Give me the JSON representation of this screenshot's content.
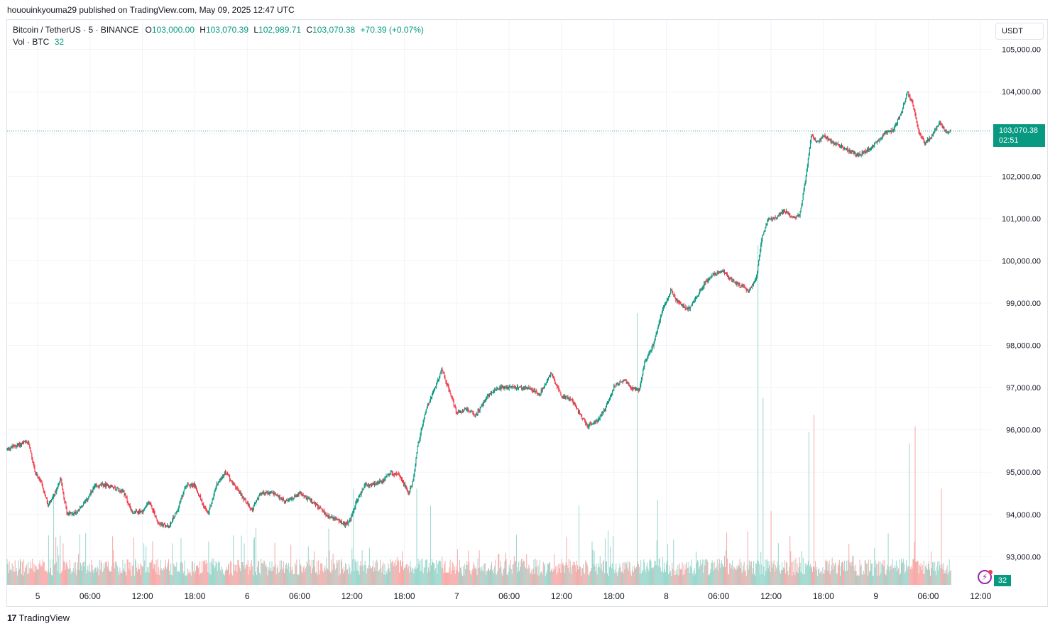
{
  "header": {
    "published": "hououinkyouma29 published on TradingView.com, May 09, 2025 12:47 UTC"
  },
  "legend": {
    "symbol": "Bitcoin / TetherUS · 5 · BINANCE",
    "o_label": "O",
    "o_value": "103,000.00",
    "h_label": "H",
    "h_value": "103,070.39",
    "l_label": "L",
    "l_value": "102,989.71",
    "c_label": "C",
    "c_value": "103,070.38",
    "change": "+70.39 (+0.07%)",
    "vol_label": "Vol · BTC",
    "vol_value": "32"
  },
  "price_scale": {
    "unit": "USDT"
  },
  "last_price": {
    "value": "103,070.38",
    "countdown": "02:51"
  },
  "volume_tag": "32",
  "footer": {
    "brand": "TradingView"
  },
  "colors": {
    "up": "#089981",
    "down": "#f23645",
    "vol_up": "#9ad6cc",
    "vol_down": "#f7a9a7",
    "grid": "#f0f3fa"
  },
  "chart_data": {
    "type": "candlestick",
    "symbol": "Bitcoin / TetherUS",
    "interval": "5",
    "exchange": "BINANCE",
    "y_axis": {
      "unit": "USDT",
      "ticks": [
        93000,
        94000,
        95000,
        96000,
        97000,
        98000,
        99000,
        100000,
        101000,
        102000,
        103000,
        104000,
        105000
      ],
      "tick_labels": [
        "93,000.00",
        "94,000.00",
        "95,000.00",
        "96,000.00",
        "97,000.00",
        "98,000.00",
        "99,000.00",
        "100,000.00",
        "101,000.00",
        "102,000.00",
        "103,000.00",
        "104,000.00",
        "105,000.00"
      ],
      "range": [
        92300,
        105700
      ]
    },
    "x_axis": {
      "range_hours": [
        -3.5,
        109.2
      ],
      "tick_labels": [
        "5",
        "06:00",
        "12:00",
        "18:00",
        "6",
        "06:00",
        "12:00",
        "18:00",
        "7",
        "06:00",
        "12:00",
        "18:00",
        "8",
        "06:00",
        "12:00",
        "18:00",
        "9",
        "06:00",
        "12:00"
      ],
      "tick_hours": [
        0,
        6,
        12,
        18,
        24,
        30,
        36,
        42,
        48,
        54,
        60,
        66,
        72,
        78,
        84,
        90,
        96,
        102,
        108
      ]
    },
    "price_anchors": [
      {
        "h": -3.5,
        "p": 95550
      },
      {
        "h": -1.5,
        "p": 95700
      },
      {
        "h": -1.0,
        "p": 95680
      },
      {
        "h": -0.3,
        "p": 95000
      },
      {
        "h": 0.5,
        "p": 94700
      },
      {
        "h": 1.2,
        "p": 94200
      },
      {
        "h": 1.9,
        "p": 94450
      },
      {
        "h": 2.6,
        "p": 94850
      },
      {
        "h": 3.4,
        "p": 94000
      },
      {
        "h": 4.4,
        "p": 94050
      },
      {
        "h": 5.5,
        "p": 94300
      },
      {
        "h": 6.5,
        "p": 94650
      },
      {
        "h": 7.5,
        "p": 94700
      },
      {
        "h": 8.5,
        "p": 94650
      },
      {
        "h": 9.8,
        "p": 94550
      },
      {
        "h": 10.8,
        "p": 94050
      },
      {
        "h": 12.0,
        "p": 94050
      },
      {
        "h": 12.8,
        "p": 94300
      },
      {
        "h": 13.8,
        "p": 93800
      },
      {
        "h": 15.0,
        "p": 93700
      },
      {
        "h": 16.0,
        "p": 94100
      },
      {
        "h": 17.0,
        "p": 94700
      },
      {
        "h": 18.0,
        "p": 94700
      },
      {
        "h": 18.8,
        "p": 94300
      },
      {
        "h": 19.5,
        "p": 94000
      },
      {
        "h": 20.5,
        "p": 94700
      },
      {
        "h": 21.5,
        "p": 95000
      },
      {
        "h": 22.5,
        "p": 94700
      },
      {
        "h": 23.5,
        "p": 94400
      },
      {
        "h": 24.5,
        "p": 94100
      },
      {
        "h": 25.5,
        "p": 94500
      },
      {
        "h": 27.0,
        "p": 94500
      },
      {
        "h": 28.5,
        "p": 94300
      },
      {
        "h": 30.0,
        "p": 94500
      },
      {
        "h": 31.5,
        "p": 94300
      },
      {
        "h": 33.0,
        "p": 94000
      },
      {
        "h": 34.5,
        "p": 93850
      },
      {
        "h": 35.2,
        "p": 93750
      },
      {
        "h": 35.8,
        "p": 93850
      },
      {
        "h": 36.5,
        "p": 94300
      },
      {
        "h": 37.5,
        "p": 94700
      },
      {
        "h": 38.5,
        "p": 94700
      },
      {
        "h": 39.5,
        "p": 94800
      },
      {
        "h": 40.5,
        "p": 95000
      },
      {
        "h": 41.5,
        "p": 94900
      },
      {
        "h": 42.5,
        "p": 94500
      },
      {
        "h": 43.0,
        "p": 94800
      },
      {
        "h": 43.5,
        "p": 95600
      },
      {
        "h": 44.5,
        "p": 96500
      },
      {
        "h": 45.5,
        "p": 97000
      },
      {
        "h": 46.3,
        "p": 97450
      },
      {
        "h": 47.0,
        "p": 97000
      },
      {
        "h": 48.0,
        "p": 96400
      },
      {
        "h": 49.0,
        "p": 96500
      },
      {
        "h": 50.2,
        "p": 96350
      },
      {
        "h": 51.5,
        "p": 96800
      },
      {
        "h": 53.0,
        "p": 97000
      },
      {
        "h": 54.5,
        "p": 97000
      },
      {
        "h": 56.0,
        "p": 97000
      },
      {
        "h": 57.5,
        "p": 96850
      },
      {
        "h": 58.8,
        "p": 97350
      },
      {
        "h": 60.0,
        "p": 96800
      },
      {
        "h": 61.2,
        "p": 96700
      },
      {
        "h": 62.0,
        "p": 96400
      },
      {
        "h": 63.0,
        "p": 96100
      },
      {
        "h": 64.0,
        "p": 96200
      },
      {
        "h": 65.0,
        "p": 96500
      },
      {
        "h": 66.0,
        "p": 97000
      },
      {
        "h": 67.2,
        "p": 97200
      },
      {
        "h": 68.0,
        "p": 97000
      },
      {
        "h": 68.9,
        "p": 96950
      },
      {
        "h": 69.5,
        "p": 97600
      },
      {
        "h": 70.5,
        "p": 98000
      },
      {
        "h": 71.5,
        "p": 98800
      },
      {
        "h": 72.5,
        "p": 99300
      },
      {
        "h": 73.2,
        "p": 99050
      },
      {
        "h": 74.5,
        "p": 98850
      },
      {
        "h": 75.5,
        "p": 99150
      },
      {
        "h": 76.5,
        "p": 99500
      },
      {
        "h": 77.5,
        "p": 99700
      },
      {
        "h": 78.5,
        "p": 99750
      },
      {
        "h": 79.5,
        "p": 99550
      },
      {
        "h": 80.5,
        "p": 99400
      },
      {
        "h": 81.5,
        "p": 99300
      },
      {
        "h": 82.3,
        "p": 99600
      },
      {
        "h": 83.0,
        "p": 100600
      },
      {
        "h": 83.7,
        "p": 101000
      },
      {
        "h": 84.5,
        "p": 101000
      },
      {
        "h": 85.5,
        "p": 101200
      },
      {
        "h": 86.5,
        "p": 101000
      },
      {
        "h": 87.3,
        "p": 101100
      },
      {
        "h": 88.0,
        "p": 102000
      },
      {
        "h": 88.6,
        "p": 103000
      },
      {
        "h": 89.2,
        "p": 102800
      },
      {
        "h": 90.0,
        "p": 102950
      },
      {
        "h": 91.0,
        "p": 102800
      },
      {
        "h": 92.0,
        "p": 102700
      },
      {
        "h": 93.0,
        "p": 102600
      },
      {
        "h": 94.0,
        "p": 102500
      },
      {
        "h": 95.0,
        "p": 102600
      },
      {
        "h": 96.0,
        "p": 102800
      },
      {
        "h": 97.0,
        "p": 103000
      },
      {
        "h": 98.0,
        "p": 103100
      },
      {
        "h": 99.0,
        "p": 103550
      },
      {
        "h": 99.6,
        "p": 104000
      },
      {
        "h": 100.3,
        "p": 103650
      },
      {
        "h": 101.0,
        "p": 103000
      },
      {
        "h": 101.6,
        "p": 102800
      },
      {
        "h": 102.3,
        "p": 102900
      },
      {
        "h": 103.3,
        "p": 103300
      },
      {
        "h": 104.0,
        "p": 103050
      },
      {
        "h": 104.6,
        "p": 103070
      }
    ],
    "last_close": 103070.38,
    "volume_spikes": [
      {
        "h": 68.7,
        "v": 0.48
      },
      {
        "h": 82.5,
        "v": 0.6
      },
      {
        "h": 88.9,
        "v": 0.3
      },
      {
        "h": 83.1,
        "v": 0.33
      },
      {
        "h": 88.3,
        "v": 0.27
      },
      {
        "h": 99.8,
        "v": 0.25
      },
      {
        "h": 100.5,
        "v": 0.28
      },
      {
        "h": 103.5,
        "v": 0.17
      },
      {
        "h": 43.4,
        "v": 0.17
      },
      {
        "h": 45.0,
        "v": 0.14
      },
      {
        "h": 36.2,
        "v": 0.17
      },
      {
        "h": 1.8,
        "v": 0.16
      },
      {
        "h": 71.0,
        "v": 0.15
      },
      {
        "h": 62.0,
        "v": 0.14
      },
      {
        "h": 84.0,
        "v": 0.13
      }
    ]
  }
}
